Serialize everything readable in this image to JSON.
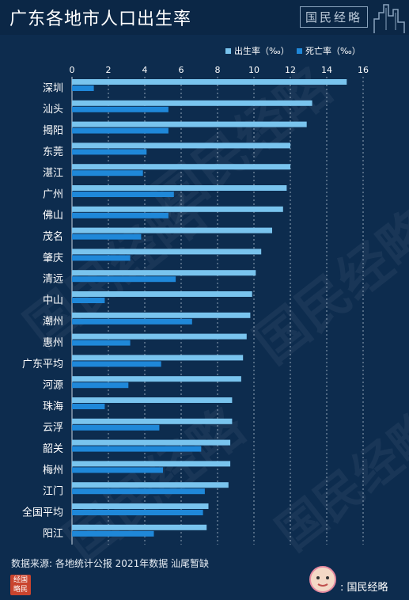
{
  "header": {
    "title": "广东各地市人口出生率",
    "logo_text": "国民经略"
  },
  "footer": {
    "source": "数据来源: 各地统计公报 2021年数据 汕尾暂缺",
    "badge_text": "经国略民",
    "brand_text": ": 国民经略"
  },
  "watermark": "国民经略",
  "colors": {
    "background": "#0d2c4e",
    "birth_rate": "#79c4ee",
    "death_rate": "#1f88d9",
    "grid": "#c9d6e3",
    "text": "#ffffff"
  },
  "chart_data": {
    "type": "bar",
    "orientation": "horizontal",
    "categories": [
      "深圳",
      "汕头",
      "揭阳",
      "东莞",
      "湛江",
      "广州",
      "佛山",
      "茂名",
      "肇庆",
      "清远",
      "中山",
      "潮州",
      "惠州",
      "广东平均",
      "河源",
      "珠海",
      "云浮",
      "韶关",
      "梅州",
      "江门",
      "全国平均",
      "阳江"
    ],
    "series": [
      {
        "name": "出生率（‰）",
        "values": [
          15.1,
          13.2,
          12.9,
          12.0,
          12.0,
          11.8,
          11.6,
          11.0,
          10.4,
          10.1,
          9.9,
          9.8,
          9.6,
          9.4,
          9.3,
          8.8,
          8.8,
          8.7,
          8.7,
          8.6,
          7.5,
          7.4
        ]
      },
      {
        "name": "死亡率（‰）",
        "values": [
          1.2,
          5.3,
          5.3,
          4.1,
          3.9,
          5.6,
          5.3,
          3.8,
          3.2,
          5.7,
          1.8,
          6.6,
          3.2,
          4.9,
          3.1,
          1.8,
          4.8,
          7.1,
          5.0,
          7.3,
          7.2,
          4.5
        ]
      }
    ],
    "xlim": [
      0,
      16
    ],
    "xticks": [
      0,
      2,
      4,
      6,
      8,
      10,
      12,
      14,
      16
    ],
    "legend_position": "top-right",
    "grid": true
  }
}
